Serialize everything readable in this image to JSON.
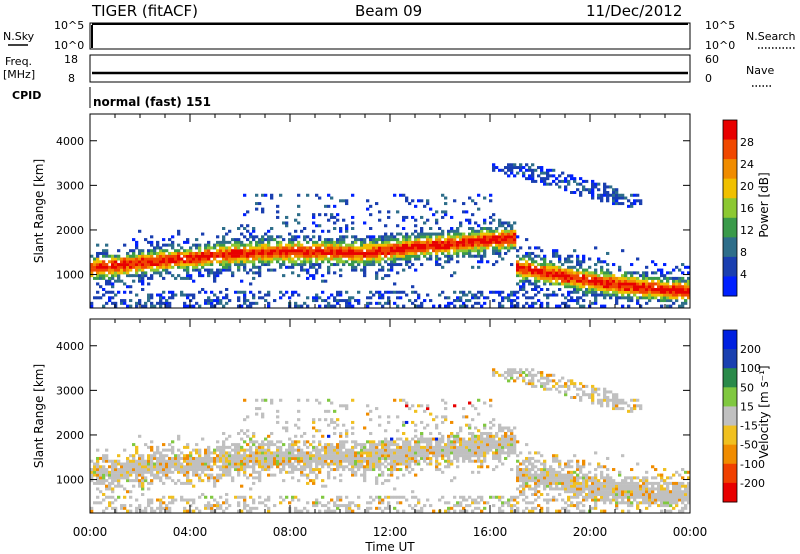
{
  "header": {
    "station": "TIGER (fitACF)",
    "beam": "Beam 09",
    "date": "11/Dec/2012"
  },
  "strips": {
    "nsky": {
      "label": "N.Sky",
      "ticks": [
        "10^5",
        "10^0"
      ]
    },
    "nsearch": {
      "label": "N.Search",
      "ticks": [
        "10^5",
        "10^0"
      ]
    },
    "freq": {
      "label_top": "Freq.",
      "label_bottom": "[MHz]",
      "ticks": [
        "18",
        "8"
      ]
    },
    "nave": {
      "label": "Nave",
      "ticks": [
        "60",
        "0"
      ]
    },
    "cpid": {
      "label": "CPID",
      "value": "normal (fast) 151"
    }
  },
  "colors": {
    "power": [
      "#0020ff",
      "#1a3fb0",
      "#2e6e8a",
      "#3a9a4a",
      "#8cc832",
      "#f0c000",
      "#f08c00",
      "#f04800",
      "#e80000"
    ],
    "velocity": [
      "#0020e0",
      "#1a40b0",
      "#2a8a4a",
      "#80c840",
      "#c0c0c0",
      "#f0c020",
      "#f08c00",
      "#f04000",
      "#e80000"
    ]
  },
  "chart_data": [
    {
      "type": "heatmap",
      "name": "power",
      "ylabel": "Slant Range [km]",
      "yticks": [
        "1000",
        "2000",
        "3000",
        "4000"
      ],
      "ylim": [
        250,
        4600
      ],
      "xlim": [
        0,
        24
      ],
      "colorbar": {
        "label": "Power [dB]",
        "ticks": [
          "4",
          "8",
          "12",
          "16",
          "20",
          "24",
          "28"
        ],
        "range": [
          0,
          32
        ]
      }
    },
    {
      "type": "heatmap",
      "name": "velocity",
      "ylabel": "Slant Range [km]",
      "yticks": [
        "1000",
        "2000",
        "3000",
        "4000"
      ],
      "ylim": [
        250,
        4600
      ],
      "xlim": [
        0,
        24
      ],
      "xlabel": "Time UT",
      "xticks": [
        "00:00",
        "04:00",
        "08:00",
        "12:00",
        "16:00",
        "20:00",
        "00:00"
      ],
      "colorbar": {
        "label": "Velocity [m s⁻¹]",
        "ticks": [
          "200",
          "100",
          "50",
          "15",
          "-15",
          "-50",
          "-100",
          "-200"
        ]
      }
    }
  ]
}
